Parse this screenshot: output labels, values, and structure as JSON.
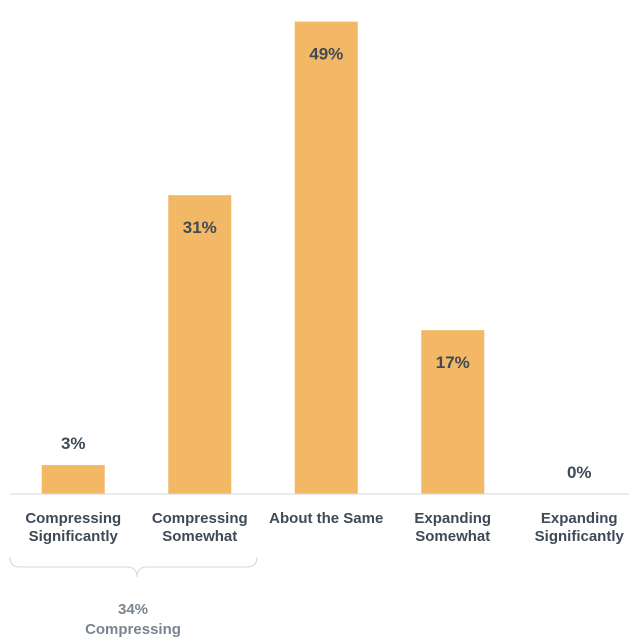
{
  "chart_data": {
    "type": "bar",
    "categories": [
      [
        "Compressing",
        "Significantly"
      ],
      [
        "Compressing",
        "Somewhat"
      ],
      [
        "About the Same"
      ],
      [
        "Expanding",
        "Somewhat"
      ],
      [
        "Expanding",
        "Significantly"
      ]
    ],
    "values": [
      3,
      31,
      49,
      17,
      0
    ],
    "value_labels": [
      "3%",
      "31%",
      "49%",
      "17%",
      "0%"
    ],
    "ylim": [
      0,
      50
    ],
    "grid": false,
    "bar_color": "#f2b865",
    "text_color": "#3f4a57",
    "annotation": {
      "spans_categories": [
        0,
        1
      ],
      "value_label": "34%",
      "label": "Compressing",
      "color": "#7a8591"
    }
  }
}
